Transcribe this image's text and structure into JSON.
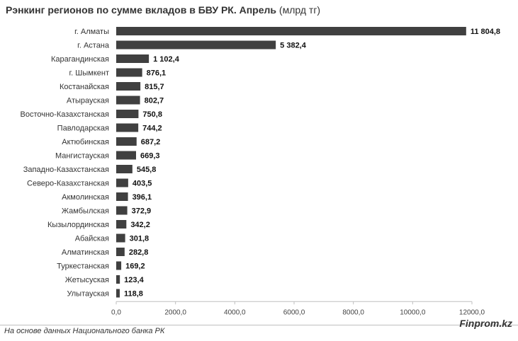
{
  "chart_data": {
    "type": "bar",
    "orientation": "horizontal",
    "title": "Рэнкинг регионов по сумме вкладов в БВУ РК. Апрель",
    "title_unit": "(млрд тг)",
    "categories": [
      "г. Алматы",
      "г. Астана",
      "Карагандинская",
      "г. Шымкент",
      "Костанайская",
      "Атырауская",
      "Восточно-Казахстанская",
      "Павлодарская",
      "Актюбинская",
      "Мангистауская",
      "Западно-Казахстанская",
      "Северо-Казахстанская",
      "Акмолинская",
      "Жамбылская",
      "Кызылординская",
      "Абайская",
      "Алматинская",
      "Туркестанская",
      "Жетысуская",
      "Улытауская"
    ],
    "values": [
      11804.8,
      5382.4,
      1102.4,
      876.1,
      815.7,
      802.7,
      750.8,
      744.2,
      687.2,
      669.3,
      545.8,
      403.5,
      396.1,
      372.9,
      342.2,
      301.8,
      282.8,
      169.2,
      123.4,
      118.8
    ],
    "value_labels": [
      "11 804,8",
      "5 382,4",
      "1 102,4",
      "876,1",
      "815,7",
      "802,7",
      "750,8",
      "744,2",
      "687,2",
      "669,3",
      "545,8",
      "403,5",
      "396,1",
      "372,9",
      "342,2",
      "301,8",
      "282,8",
      "169,2",
      "123,4",
      "118,8"
    ],
    "xlim": [
      0,
      12000
    ],
    "x_ticks": [
      0,
      2000,
      4000,
      6000,
      8000,
      10000,
      12000
    ],
    "x_tick_labels": [
      "0,0",
      "2000,0",
      "4000,0",
      "6000,0",
      "8000,0",
      "10000,0",
      "12000,0"
    ],
    "grid": false,
    "bar_color": "#404040"
  },
  "footer": {
    "source": "На основе данных Национального банка РК",
    "brand": "Finprom.kz"
  }
}
